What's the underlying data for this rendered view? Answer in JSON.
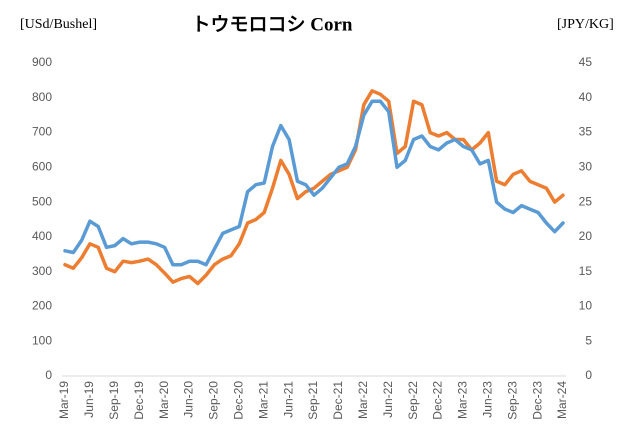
{
  "chart_data": {
    "type": "line",
    "title": "トウモロコシ  Corn",
    "y_label": "[USd/Bushel]",
    "y2_label": "[JPY/KG]",
    "categories": [
      "Mar-19",
      null,
      null,
      "Jun-19",
      null,
      null,
      "Sep-19",
      null,
      null,
      "Dec-19",
      null,
      null,
      "Mar-20",
      null,
      null,
      "Jun-20",
      null,
      null,
      "Sep-20",
      null,
      null,
      "Dec-20",
      null,
      null,
      "Mar-21",
      null,
      null,
      "Jun-21",
      null,
      null,
      "Sep-21",
      null,
      null,
      "Dec-21",
      null,
      null,
      "Mar-22",
      null,
      null,
      "Jun-22",
      null,
      null,
      "Sep-22",
      null,
      null,
      "Dec-22",
      null,
      null,
      "Mar-23",
      null,
      null,
      "Jun-23",
      null,
      null,
      "Sep-23",
      null,
      null,
      "Dec-23",
      null,
      null,
      "Mar-24"
    ],
    "series": [
      {
        "name": "USd/Bushel",
        "color": "#5b9bd5",
        "axis": "y",
        "values": [
          360,
          355,
          390,
          445,
          430,
          370,
          375,
          395,
          380,
          385,
          385,
          380,
          370,
          320,
          320,
          330,
          330,
          320,
          365,
          410,
          420,
          430,
          530,
          550,
          555,
          660,
          720,
          680,
          560,
          550,
          520,
          540,
          570,
          600,
          610,
          660,
          750,
          790,
          790,
          760,
          600,
          620,
          680,
          690,
          660,
          650,
          670,
          680,
          660,
          650,
          610,
          620,
          500,
          480,
          470,
          490,
          480,
          470,
          440,
          415,
          440
        ]
      },
      {
        "name": "JPY/KG",
        "color": "#ed7d31",
        "axis": "y2",
        "values": [
          16,
          15.5,
          17,
          19,
          18.5,
          15.5,
          15,
          16.5,
          16.3,
          16.5,
          16.8,
          16,
          14.8,
          13.5,
          14,
          14.3,
          13.3,
          14.5,
          16,
          16.8,
          17.3,
          19,
          22,
          22.5,
          23.5,
          27,
          31,
          29,
          25.5,
          26.5,
          27,
          28,
          29,
          29.5,
          30,
          32.5,
          39,
          41,
          40.5,
          39.5,
          32,
          33,
          39.5,
          39,
          35,
          34.5,
          35,
          34,
          34,
          32.5,
          33.5,
          35,
          28,
          27.5,
          29,
          29.5,
          28,
          27.5,
          27,
          25,
          26
        ]
      }
    ],
    "ylim": [
      0,
      900
    ],
    "yticks": [
      0,
      100,
      200,
      300,
      400,
      500,
      600,
      700,
      800,
      900
    ],
    "y2lim": [
      0,
      45
    ],
    "y2ticks": [
      0,
      5,
      10,
      15,
      20,
      25,
      30,
      35,
      40,
      45
    ],
    "grid": false
  }
}
